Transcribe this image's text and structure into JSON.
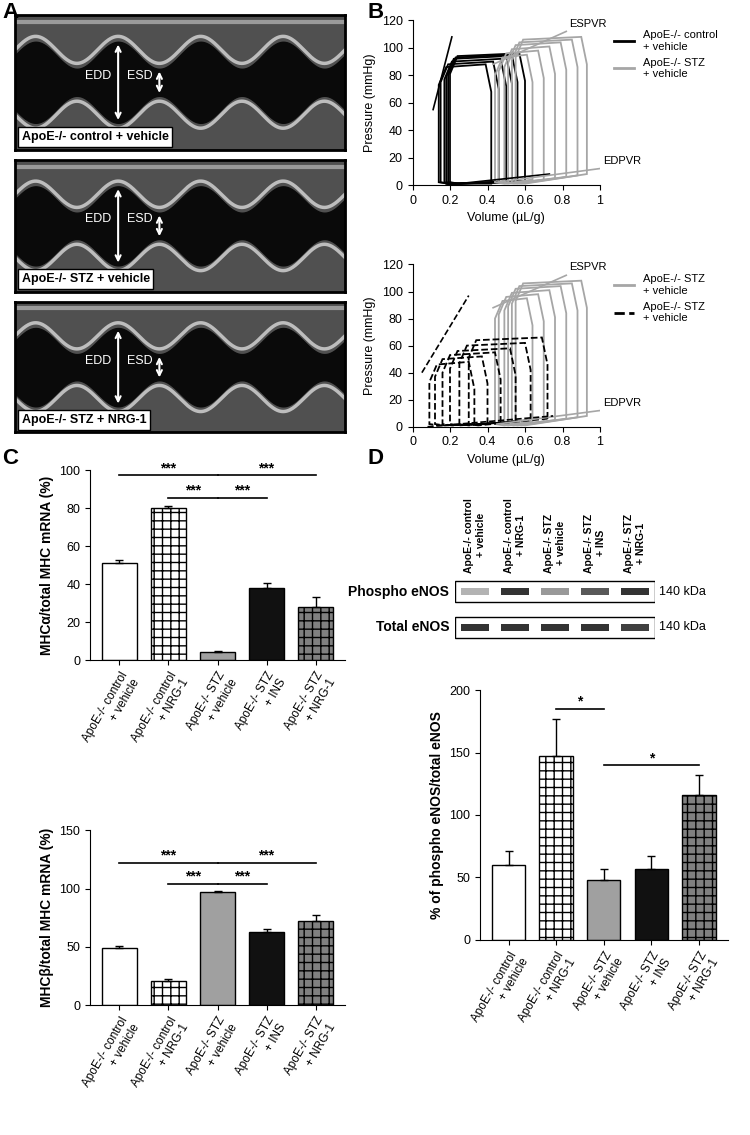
{
  "echocardiography": {
    "panel": "A",
    "images": [
      {
        "label": "ApoE-/- control + vehicle",
        "arrows": [
          "EDD",
          "ESD"
        ]
      },
      {
        "label": "ApoE-/- STZ + vehicle",
        "arrows": [
          "EDD",
          "ESD"
        ]
      },
      {
        "label": "ApoE-/- STZ + NRG-1",
        "arrows": [
          "EDD",
          "ESD"
        ]
      }
    ]
  },
  "chart_data": [
    {
      "panel": "B",
      "type": "line",
      "xlabel": "Volume (µL/g)",
      "ylabel": "Pressure (mmHg)",
      "xlim": [
        0,
        1
      ],
      "ylim": [
        0,
        120
      ],
      "xticks": [
        0,
        0.2,
        0.4,
        0.6,
        0.8,
        1
      ],
      "yticks": [
        0,
        20,
        40,
        60,
        80,
        100,
        120
      ],
      "legend": "right",
      "series": [
        {
          "name": "ApoE-/- control + vehicle",
          "color": "#000000",
          "line_style": "solid",
          "loops": [
            {
              "x": [
                0.6,
                0.6,
                0.57,
                0.24,
                0.2,
                0.2,
                0.25
              ],
              "y": [
                3,
                76,
                96,
                94,
                81,
                2,
                1
              ]
            },
            {
              "x": [
                0.56,
                0.56,
                0.53,
                0.23,
                0.19,
                0.19,
                0.24
              ],
              "y": [
                3,
                75,
                95,
                93,
                80,
                2,
                1
              ]
            },
            {
              "x": [
                0.53,
                0.53,
                0.5,
                0.22,
                0.18,
                0.18,
                0.23
              ],
              "y": [
                2,
                74,
                94,
                92,
                79,
                2,
                1
              ]
            },
            {
              "x": [
                0.5,
                0.5,
                0.47,
                0.21,
                0.17,
                0.17,
                0.22
              ],
              "y": [
                2,
                72,
                92,
                90,
                77,
                2,
                1
              ]
            },
            {
              "x": [
                0.46,
                0.46,
                0.43,
                0.19,
                0.15,
                0.15,
                0.2
              ],
              "y": [
                2,
                70,
                90,
                88,
                75,
                2,
                1
              ]
            },
            {
              "x": [
                0.42,
                0.42,
                0.39,
                0.18,
                0.14,
                0.14,
                0.19
              ],
              "y": [
                1,
                68,
                88,
                86,
                73,
                2,
                1
              ]
            }
          ],
          "relations": [
            {
              "x": [
                0.11,
                0.21
              ],
              "y": [
                55,
                108
              ]
            },
            {
              "x": [
                0.18,
                0.73
              ],
              "y": [
                0,
                8
              ]
            }
          ]
        },
        {
          "name": "ApoE-/- STZ + vehicle",
          "color": "#a6a6a6",
          "line_style": "solid",
          "loops": [
            {
              "x": [
                0.93,
                0.93,
                0.9,
                0.59,
                0.55,
                0.55,
                0.6
              ],
              "y": [
                8,
                88,
                108,
                106,
                93,
                2,
                1
              ]
            },
            {
              "x": [
                0.88,
                0.88,
                0.85,
                0.57,
                0.53,
                0.53,
                0.58
              ],
              "y": [
                7,
                86,
                106,
                104,
                91,
                2,
                1
              ]
            },
            {
              "x": [
                0.82,
                0.82,
                0.79,
                0.55,
                0.51,
                0.51,
                0.56
              ],
              "y": [
                6,
                84,
                104,
                102,
                89,
                2,
                1
              ]
            },
            {
              "x": [
                0.76,
                0.76,
                0.73,
                0.53,
                0.49,
                0.49,
                0.54
              ],
              "y": [
                5,
                81,
                101,
                99,
                86,
                2,
                1
              ]
            },
            {
              "x": [
                0.7,
                0.7,
                0.67,
                0.5,
                0.46,
                0.46,
                0.51
              ],
              "y": [
                4,
                78,
                98,
                96,
                83,
                2,
                1
              ]
            },
            {
              "x": [
                0.64,
                0.64,
                0.61,
                0.48,
                0.44,
                0.44,
                0.49
              ],
              "y": [
                4,
                75,
                95,
                93,
                80,
                2,
                1
              ]
            }
          ],
          "relations": [
            {
              "x": [
                0.43,
                0.82
              ],
              "y": [
                88,
                112
              ],
              "label": "ESPVR"
            },
            {
              "x": [
                0.45,
                1.0
              ],
              "y": [
                2,
                12
              ],
              "label": "EDPVR"
            }
          ]
        }
      ]
    },
    {
      "type": "line",
      "xlabel": "Volume (µL/g)",
      "ylabel": "Pressure (mmHg)",
      "xlim": [
        0,
        1
      ],
      "ylim": [
        0,
        120
      ],
      "xticks": [
        0,
        0.2,
        0.4,
        0.6,
        0.8,
        1
      ],
      "yticks": [
        0,
        20,
        40,
        60,
        80,
        100,
        120
      ],
      "legend": "right",
      "series": [
        {
          "name": "ApoE-/- STZ + vehicle",
          "color": "#a6a6a6",
          "line_style": "solid",
          "loops": [
            {
              "x": [
                0.93,
                0.93,
                0.9,
                0.59,
                0.55,
                0.55,
                0.6
              ],
              "y": [
                8,
                88,
                108,
                106,
                93,
                2,
                1
              ]
            },
            {
              "x": [
                0.88,
                0.88,
                0.85,
                0.57,
                0.53,
                0.53,
                0.58
              ],
              "y": [
                7,
                86,
                106,
                104,
                91,
                2,
                1
              ]
            },
            {
              "x": [
                0.82,
                0.82,
                0.79,
                0.55,
                0.51,
                0.51,
                0.56
              ],
              "y": [
                6,
                84,
                104,
                102,
                89,
                2,
                1
              ]
            },
            {
              "x": [
                0.76,
                0.76,
                0.73,
                0.53,
                0.49,
                0.49,
                0.54
              ],
              "y": [
                5,
                81,
                101,
                99,
                86,
                2,
                1
              ]
            },
            {
              "x": [
                0.7,
                0.7,
                0.67,
                0.5,
                0.46,
                0.46,
                0.51
              ],
              "y": [
                4,
                78,
                98,
                96,
                83,
                2,
                1
              ]
            },
            {
              "x": [
                0.64,
                0.64,
                0.61,
                0.48,
                0.44,
                0.44,
                0.49
              ],
              "y": [
                4,
                75,
                95,
                93,
                80,
                2,
                1
              ]
            }
          ],
          "relations": [
            {
              "x": [
                0.43,
                0.82
              ],
              "y": [
                88,
                112
              ],
              "label": "ESPVR"
            },
            {
              "x": [
                0.45,
                1.0
              ],
              "y": [
                2,
                12
              ],
              "label": "EDPVR"
            }
          ]
        },
        {
          "name": "ApoE-/- STZ + vehicle",
          "color": "#000000",
          "line_style": "dashed",
          "loops": [
            {
              "x": [
                0.72,
                0.72,
                0.69,
                0.34,
                0.3,
                0.3,
                0.35
              ],
              "y": [
                6,
                46,
                66,
                64,
                51,
                2,
                1
              ]
            },
            {
              "x": [
                0.63,
                0.63,
                0.6,
                0.29,
                0.25,
                0.25,
                0.3
              ],
              "y": [
                5,
                42,
                62,
                60,
                47,
                2,
                1
              ]
            },
            {
              "x": [
                0.55,
                0.55,
                0.52,
                0.24,
                0.2,
                0.2,
                0.25
              ],
              "y": [
                4,
                38,
                58,
                56,
                43,
                2,
                1
              ]
            },
            {
              "x": [
                0.47,
                0.47,
                0.44,
                0.2,
                0.16,
                0.16,
                0.21
              ],
              "y": [
                3,
                35,
                55,
                53,
                40,
                2,
                1
              ]
            },
            {
              "x": [
                0.4,
                0.4,
                0.37,
                0.16,
                0.12,
                0.12,
                0.17
              ],
              "y": [
                2,
                32,
                52,
                50,
                37,
                2,
                1
              ]
            },
            {
              "x": [
                0.33,
                0.33,
                0.3,
                0.13,
                0.09,
                0.09,
                0.14
              ],
              "y": [
                2,
                28,
                48,
                46,
                33,
                2,
                1
              ]
            }
          ],
          "relations": [
            {
              "x": [
                0.05,
                0.3
              ],
              "y": [
                40,
                97
              ]
            },
            {
              "x": [
                0.08,
                0.75
              ],
              "y": [
                0,
                8
              ]
            }
          ]
        }
      ]
    },
    {
      "panel": "C",
      "type": "bar",
      "categories": [
        "ApoE-/- control + vehicle",
        "ApoE-/- control + NRG-1",
        "ApoE-/- STZ + vehicle",
        "ApoE-/- STZ + INS",
        "ApoE-/- STZ + NRG-1"
      ],
      "values": [
        51,
        80,
        4,
        38,
        28
      ],
      "errors": [
        2,
        1.5,
        1,
        2.5,
        5.5
      ],
      "colors": [
        "#ffffff",
        "#ffffff",
        "#a0a0a0",
        "#111111",
        "#808080"
      ],
      "ylabel": "MHCα/total MHC mRNA (%)",
      "ylim": [
        0,
        100
      ],
      "yticks": [
        0,
        20,
        40,
        60,
        80,
        100
      ],
      "significance": [
        {
          "from": 0,
          "to": 2,
          "label": "***"
        },
        {
          "from": 2,
          "to": 4,
          "label": "***"
        },
        {
          "from": 1,
          "to": 2,
          "label": "***"
        },
        {
          "from": 2,
          "to": 3,
          "label": "***"
        }
      ]
    },
    {
      "type": "bar",
      "categories": [
        "ApoE-/- control + vehicle",
        "ApoE-/- control + NRG-1",
        "ApoE-/- STZ + vehicle",
        "ApoE-/- STZ + INS",
        "ApoE-/- STZ + NRG-1"
      ],
      "values": [
        49,
        21,
        97,
        63,
        72
      ],
      "errors": [
        2,
        1.5,
        1,
        2.5,
        5.5
      ],
      "colors": [
        "#ffffff",
        "#ffffff",
        "#a0a0a0",
        "#111111",
        "#808080"
      ],
      "ylabel": "MHCβ/total MHC mRNA (%)",
      "ylim": [
        0,
        150
      ],
      "yticks": [
        0,
        50,
        100,
        150
      ],
      "significance": [
        {
          "from": 0,
          "to": 2,
          "label": "***"
        },
        {
          "from": 2,
          "to": 4,
          "label": "***"
        },
        {
          "from": 1,
          "to": 2,
          "label": "***"
        },
        {
          "from": 2,
          "to": 3,
          "label": "***"
        }
      ]
    },
    {
      "type": "bar",
      "categories": [
        "ApoE-/- control + vehicle",
        "ApoE-/- control + NRG-1",
        "ApoE-/- STZ + vehicle",
        "ApoE-/- STZ + INS",
        "ApoE-/- STZ + NRG-1"
      ],
      "values": [
        60,
        147,
        48,
        57,
        116
      ],
      "errors": [
        11,
        30,
        9,
        10,
        16
      ],
      "colors": [
        "#ffffff",
        "#ffffff",
        "#a0a0a0",
        "#111111",
        "#808080"
      ],
      "ylabel": "% of phospho eNOS/total eNOS",
      "ylim": [
        0,
        200
      ],
      "yticks": [
        0,
        50,
        100,
        150,
        200
      ],
      "significance": [
        {
          "from": 1,
          "to": 2,
          "label": "*"
        },
        {
          "from": 2,
          "to": 4,
          "label": "*"
        }
      ]
    }
  ],
  "western_blot": {
    "panel": "D",
    "lanes": [
      "ApoE-/- control + vehicle",
      "ApoE-/- control + NRG-1",
      "ApoE-/- STZ + vehicle",
      "ApoE-/- STZ + INS",
      "ApoE-/- STZ + NRG-1"
    ],
    "rows": [
      {
        "name": "Phospho eNOS",
        "size": "140 kDa",
        "band_intensity": [
          0.3,
          0.8,
          0.4,
          0.65,
          0.8
        ]
      },
      {
        "name": "Total eNOS",
        "size": "140 kDa",
        "band_intensity": [
          0.8,
          0.8,
          0.8,
          0.8,
          0.75
        ]
      }
    ]
  }
}
